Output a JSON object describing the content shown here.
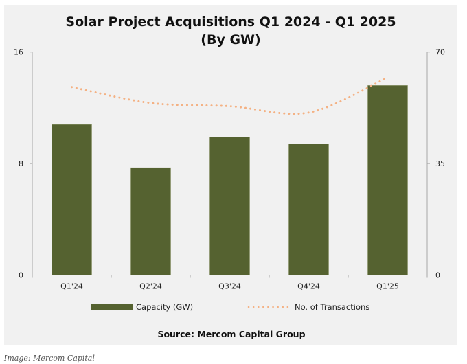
{
  "chart_data": {
    "type": "bar",
    "title": "Solar Project Acquisitions Q1 2024 - Q1 2025",
    "subtitle": "(By GW)",
    "categories": [
      "Q1'24",
      "Q2'24",
      "Q3'24",
      "Q4'24",
      "Q1'25"
    ],
    "series": [
      {
        "name": "Capacity (GW)",
        "type": "bar",
        "axis": "left",
        "color": "#556230",
        "values": [
          10.8,
          7.7,
          9.9,
          9.4,
          13.6
        ]
      },
      {
        "name": "No. of Transactions",
        "type": "line",
        "style": "dotted",
        "axis": "right",
        "color": "#f4b183",
        "values": [
          59,
          54,
          53,
          51,
          62
        ]
      }
    ],
    "left_axis": {
      "ylim": [
        0,
        16
      ],
      "ticks": [
        "0",
        "8",
        "16"
      ],
      "tick_values": [
        0,
        8,
        16
      ]
    },
    "right_axis": {
      "ylim": [
        0,
        70
      ],
      "ticks": [
        "0",
        "35",
        "70"
      ],
      "tick_values": [
        0,
        35,
        70
      ]
    },
    "xlabel": "",
    "ylabel": "",
    "grid": false,
    "legend_position": "bottom",
    "source": "Source: Mercom Capital Group"
  },
  "caption": "Image: Mercom Capital"
}
